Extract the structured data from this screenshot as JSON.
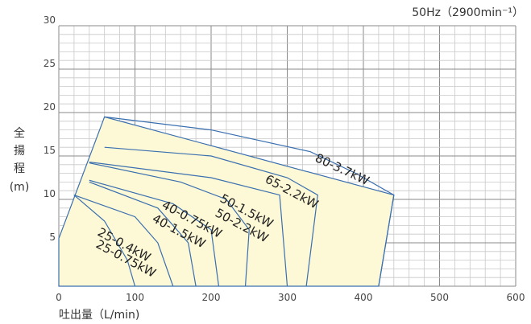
{
  "chart_data": {
    "type": "line",
    "title": "50Hz（2900min⁻¹）",
    "xlabel": "吐出量（L/min)",
    "ylabel": [
      "全",
      "揚",
      "程",
      "(m)"
    ],
    "xlim": [
      0,
      600
    ],
    "ylim": [
      0,
      30
    ],
    "x_ticks": [
      "0",
      "100",
      "200",
      "300",
      "400",
      "500",
      "600"
    ],
    "y_ticks": [
      "5",
      "10",
      "15",
      "20",
      "25",
      "30"
    ],
    "grid": true,
    "shaded_region_color": "#fdf8d5",
    "line_color": "#3a6fb0",
    "series": [
      {
        "name": "25-0.4kW",
        "x": [
          20,
          60,
          90,
          100
        ],
        "y": [
          10.5,
          7.5,
          3.0,
          0
        ]
      },
      {
        "name": "25-0.75kW",
        "x": [
          20,
          100,
          130,
          150
        ],
        "y": [
          10.5,
          8.0,
          5.0,
          0
        ]
      },
      {
        "name": "40-0.75kW",
        "x": [
          40,
          130,
          170,
          180
        ],
        "y": [
          12.0,
          9.0,
          5.0,
          0
        ]
      },
      {
        "name": "40-1.5kW",
        "x": [
          40,
          150,
          200,
          210
        ],
        "y": [
          12.2,
          9.5,
          6.5,
          0
        ]
      },
      {
        "name": "50-1.5kW",
        "x": [
          40,
          160,
          220,
          250,
          245
        ],
        "y": [
          14.2,
          12.0,
          10.0,
          6.5,
          0
        ]
      },
      {
        "name": "50-2.2kW",
        "x": [
          40,
          200,
          290,
          300
        ],
        "y": [
          14.3,
          12.5,
          10.5,
          0
        ]
      },
      {
        "name": "65-2.2kW",
        "x": [
          60,
          200,
          300,
          340,
          325
        ],
        "y": [
          16.0,
          15.0,
          12.5,
          10.5,
          0
        ]
      },
      {
        "name": "80-3.7kW",
        "x": [
          60,
          200,
          330,
          390,
          440,
          420
        ],
        "y": [
          19.5,
          18.0,
          15.5,
          13.0,
          10.5,
          0
        ]
      }
    ],
    "envelope": {
      "x": [
        0,
        60,
        440,
        420,
        0
      ],
      "y": [
        5.5,
        19.5,
        10.5,
        0,
        0
      ]
    }
  }
}
